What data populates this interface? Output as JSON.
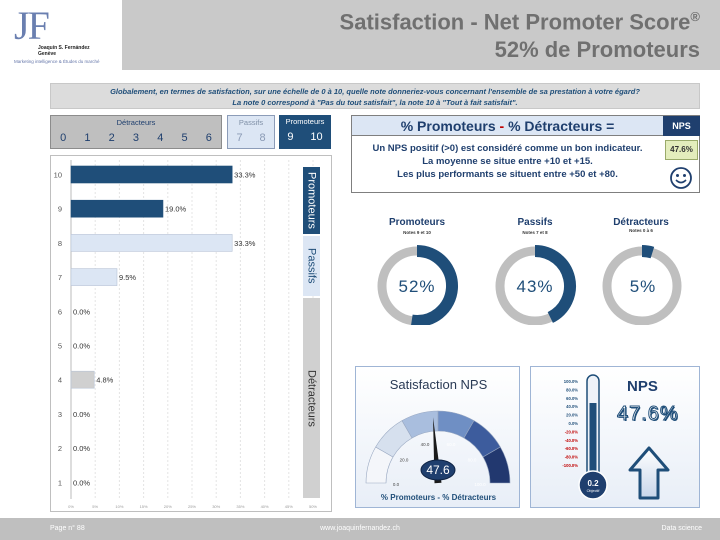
{
  "header": {
    "logo_letters": "JF",
    "logo_name_line1": "Joaquín S. Fernández",
    "logo_name_line2": "Genève",
    "logo_tagline": "Marketing intelligence & Études du marché",
    "title_line1": "Satisfaction - Net Promoter Score",
    "title_reg": "®",
    "title_line2": "52% de Promoteurs"
  },
  "question": {
    "line1": "Globalement, en termes de satisfaction, sur une échelle de 0 à 10, quelle note donneriez-vous concernant l'ensemble de sa prestation à votre égard?",
    "line2": "La note 0 correspond à \"Pas du tout satisfait\", la note 10 à \"Tout à fait satisfait\"."
  },
  "scale": {
    "detracteurs": {
      "label": "Détracteurs",
      "numbers": [
        "0",
        "1",
        "2",
        "3",
        "4",
        "5",
        "6"
      ]
    },
    "passifs": {
      "label": "Passifs",
      "numbers": [
        "7",
        "8"
      ]
    },
    "promoteurs": {
      "label": "Promoteurs",
      "numbers": [
        "9",
        "10"
      ]
    }
  },
  "side_labels": {
    "promoteurs": "Promoteurs",
    "passifs": "Passifs",
    "detracteurs": "Détracteurs"
  },
  "formula": {
    "title_a": "% Promoteurs",
    "title_sep": " - ",
    "title_b": "% Détracteurs =",
    "text_line1": "Un NPS positif (>0) est considéré comme un bon indicateur.",
    "text_line2": "La moyenne se situe entre +10 et +15.",
    "text_line3": "Les plus performants se situent entre +50 et +80.",
    "nps_label": "NPS",
    "nps_value": "47.6%"
  },
  "donuts": [
    {
      "title": "Promoteurs",
      "sub": "Notes 9 et 10",
      "label": "52%",
      "value": 52.4
    },
    {
      "title": "Passifs",
      "sub": "Notes 7 et 8",
      "label": "43%",
      "value": 42.8
    },
    {
      "title": "Détracteurs",
      "sub": "Notes 0 à 6",
      "label": "5%",
      "value": 4.8
    }
  ],
  "gauge": {
    "title": "Satisfaction NPS",
    "value_label": "47.6",
    "value": 47.6,
    "footer": "% Promoteurs - % Détracteurs",
    "ticks": [
      "0.0",
      "20.0",
      "40.0",
      "60.0",
      "80.0",
      "100.0"
    ],
    "min": 0,
    "max": 100
  },
  "thermometer": {
    "title": "NPS",
    "value_label": "47.6%",
    "ticks": [
      "100.0%",
      "80.0%",
      "60.0%",
      "40.0%",
      "20.0%",
      "0.0%",
      "-20.0%",
      "-40.0%",
      "-60.0%",
      "-80.0%",
      "-100.0%"
    ],
    "bulb_value": "0.2",
    "bulb_label": "Objectif",
    "colors": {
      "positive_ticks": "#1f4e79",
      "negative_ticks": "#c00000"
    }
  },
  "footer": {
    "page": "Page n° 88",
    "url": "www.joaquinfernandez.ch",
    "right": "Data science"
  },
  "colors": {
    "promoteurs": "#1f4e79",
    "passifs": "#dce6f4",
    "detracteurs": "#d0d0d0",
    "donut_track": "#bfbfbf"
  },
  "chart_data": {
    "type": "bar",
    "orientation": "horizontal",
    "categories": [
      "10",
      "9",
      "8",
      "7",
      "6",
      "5",
      "4",
      "3",
      "2",
      "1"
    ],
    "values": [
      33.3,
      19.0,
      33.3,
      9.5,
      0.0,
      0.0,
      4.8,
      0.0,
      0.0,
      0.0
    ],
    "value_labels": [
      "33.3%",
      "19.0%",
      "33.3%",
      "9.5%",
      "0.0%",
      "0.0%",
      "4.8%",
      "0.0%",
      "0.0%",
      "0.0%"
    ],
    "groups": [
      "promoteurs",
      "promoteurs",
      "passifs",
      "passifs",
      "detracteurs",
      "detracteurs",
      "detracteurs",
      "detracteurs",
      "detracteurs",
      "detracteurs"
    ],
    "xlim": [
      0,
      50
    ],
    "xticks": [
      "0%",
      "5%",
      "10%",
      "15%",
      "20%",
      "25%",
      "30%",
      "35%",
      "40%",
      "45%",
      "50%"
    ],
    "title": "",
    "xlabel": "",
    "ylabel": ""
  }
}
